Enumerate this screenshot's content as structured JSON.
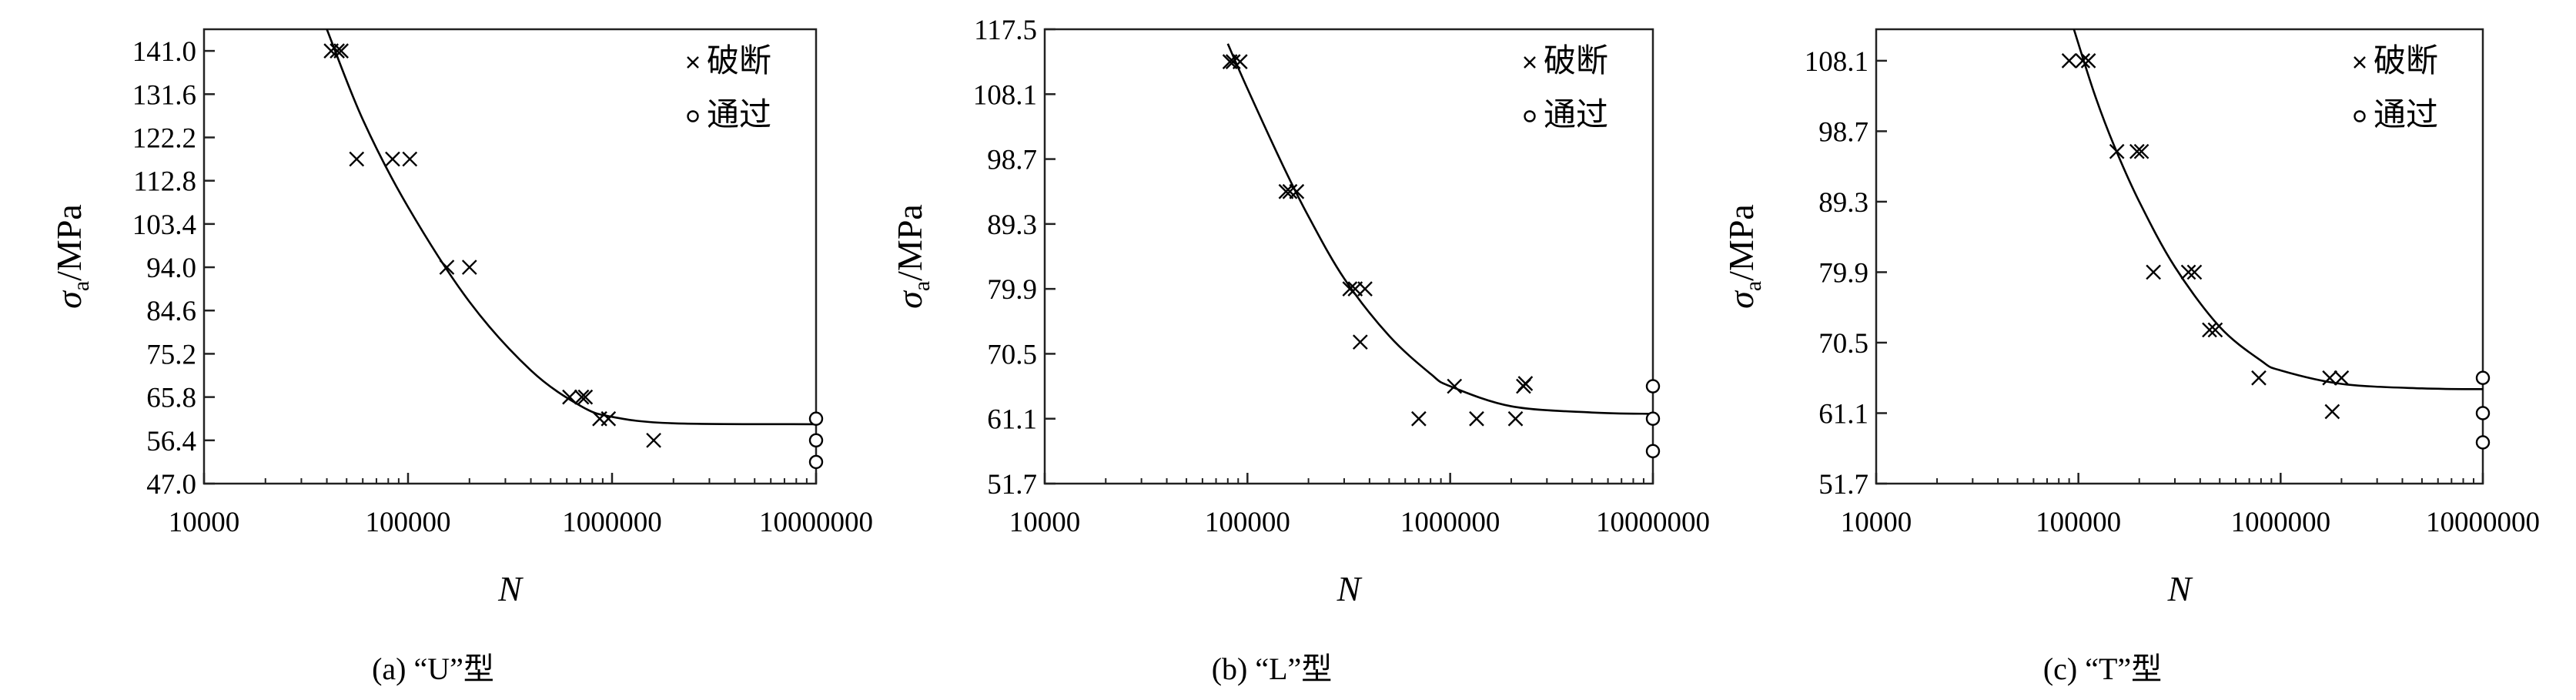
{
  "legend": {
    "broken_label": "破断",
    "passed_label": "通过"
  },
  "chart_data": [
    {
      "type": "scatter",
      "caption": "(a) “U”型",
      "xlabel": "N",
      "ylabel_symbol": "σ",
      "ylabel_subscript": "a",
      "ylabel_unit": "/MPa",
      "x_scale": "log",
      "xlim": [
        10000,
        10000000
      ],
      "ylim": [
        47.0,
        145.7
      ],
      "xticks": [
        10000,
        100000,
        1000000,
        10000000
      ],
      "xtick_labels": [
        "10000",
        "100000",
        "1000000",
        "10000000"
      ],
      "yticks": [
        47.0,
        56.4,
        65.8,
        75.2,
        84.6,
        94.0,
        103.4,
        112.8,
        122.2,
        131.6,
        141.0
      ],
      "ytick_labels": [
        "47.0",
        "56.4",
        "65.8",
        "75.2",
        "84.6",
        "94.0",
        "103.4",
        "112.8",
        "122.2",
        "131.6",
        "141.0"
      ],
      "legend_position": "top-right",
      "series": [
        {
          "name": "破断",
          "marker": "x",
          "points": [
            [
              42000,
              141.0
            ],
            [
              45000,
              141.0
            ],
            [
              47000,
              141.0
            ],
            [
              56000,
              117.5
            ],
            [
              84000,
              117.5
            ],
            [
              102000,
              117.5
            ],
            [
              155000,
              94.0
            ],
            [
              200000,
              94.0
            ],
            [
              620000,
              65.8
            ],
            [
              710000,
              65.8
            ],
            [
              740000,
              65.8
            ],
            [
              870000,
              61.1
            ],
            [
              960000,
              61.1
            ],
            [
              1600000,
              56.4
            ]
          ]
        },
        {
          "name": "通过",
          "marker": "o",
          "points": [
            [
              10000000,
              61.1
            ],
            [
              10000000,
              56.4
            ],
            [
              10000000,
              51.7
            ]
          ]
        }
      ],
      "fit_curve": [
        [
          40000,
          145.7
        ],
        [
          60000,
          126.1
        ],
        [
          100000,
          107.1
        ],
        [
          200000,
          86.5
        ],
        [
          400000,
          71.6
        ],
        [
          700000,
          63.9
        ],
        [
          1000000,
          61.5
        ],
        [
          2000000,
          60.1
        ],
        [
          10000000,
          59.9
        ]
      ]
    },
    {
      "type": "scatter",
      "caption": "(b) “L”型",
      "xlabel": "N",
      "ylabel_symbol": "σ",
      "ylabel_subscript": "a",
      "ylabel_unit": "/MPa",
      "x_scale": "log",
      "xlim": [
        10000,
        10000000
      ],
      "ylim": [
        51.7,
        117.5
      ],
      "xticks": [
        10000,
        100000,
        1000000,
        10000000
      ],
      "xtick_labels": [
        "10000",
        "100000",
        "1000000",
        "10000000"
      ],
      "yticks": [
        51.7,
        61.1,
        70.5,
        79.9,
        89.3,
        98.7,
        108.1,
        117.5
      ],
      "ytick_labels": [
        "51.7",
        "61.1",
        "70.5",
        "79.9",
        "89.3",
        "98.7",
        "108.1",
        "117.5"
      ],
      "legend_position": "top-right",
      "series": [
        {
          "name": "破断",
          "marker": "x",
          "points": [
            [
              82000,
              112.8
            ],
            [
              85000,
              112.8
            ],
            [
              92000,
              112.8
            ],
            [
              155000,
              94.0
            ],
            [
              162000,
              94.0
            ],
            [
              175000,
              94.0
            ],
            [
              320000,
              79.9
            ],
            [
              340000,
              79.9
            ],
            [
              380000,
              79.9
            ],
            [
              360000,
              72.2
            ],
            [
              700000,
              61.1
            ],
            [
              1050000,
              65.8
            ],
            [
              1350000,
              61.1
            ],
            [
              2100000,
              61.1
            ],
            [
              2300000,
              65.8
            ],
            [
              2350000,
              66.2
            ]
          ]
        },
        {
          "name": "通过",
          "marker": "o",
          "points": [
            [
              10000000,
              65.8
            ],
            [
              10000000,
              61.1
            ],
            [
              10000000,
              56.4
            ]
          ]
        }
      ],
      "fit_curve": [
        [
          80000,
          115.4
        ],
        [
          100000,
          108.9
        ],
        [
          150000,
          97.7
        ],
        [
          200000,
          90.4
        ],
        [
          300000,
          81.4
        ],
        [
          500000,
          73.1
        ],
        [
          800000,
          67.6
        ],
        [
          1000000,
          65.8
        ],
        [
          2000000,
          62.9
        ],
        [
          5000000,
          62.0
        ],
        [
          10000000,
          61.8
        ]
      ]
    },
    {
      "type": "scatter",
      "caption": "(c) “T”型",
      "xlabel": "N",
      "ylabel_symbol": "σ",
      "ylabel_subscript": "a",
      "ylabel_unit": "/MPa",
      "x_scale": "log",
      "xlim": [
        10000,
        10000000
      ],
      "ylim": [
        51.7,
        112.3
      ],
      "xticks": [
        10000,
        100000,
        1000000,
        10000000
      ],
      "xtick_labels": [
        "10000",
        "100000",
        "1000000",
        "10000000"
      ],
      "yticks": [
        51.7,
        61.1,
        70.5,
        79.9,
        89.3,
        98.7,
        108.1
      ],
      "ytick_labels": [
        "51.7",
        "61.1",
        "70.5",
        "79.9",
        "89.3",
        "98.7",
        "108.1"
      ],
      "legend_position": "top-right",
      "series": [
        {
          "name": "破断",
          "marker": "x",
          "points": [
            [
              90000,
              108.1
            ],
            [
              105000,
              108.1
            ],
            [
              112000,
              108.1
            ],
            [
              155000,
              96.0
            ],
            [
              195000,
              96.0
            ],
            [
              205000,
              96.0
            ],
            [
              235000,
              79.9
            ],
            [
              350000,
              79.9
            ],
            [
              375000,
              79.9
            ],
            [
              445000,
              72.2
            ],
            [
              475000,
              72.2
            ],
            [
              780000,
              65.8
            ],
            [
              1750000,
              65.8
            ],
            [
              2000000,
              65.8
            ],
            [
              1800000,
              61.3
            ]
          ]
        },
        {
          "name": "通过",
          "marker": "o",
          "points": [
            [
              10000000,
              65.8
            ],
            [
              10000000,
              61.1
            ],
            [
              10000000,
              57.2
            ]
          ]
        }
      ],
      "fit_curve": [
        [
          95000,
          112.3
        ],
        [
          120000,
          103.7
        ],
        [
          150000,
          96.8
        ],
        [
          200000,
          89.3
        ],
        [
          300000,
          80.6
        ],
        [
          500000,
          72.6
        ],
        [
          800000,
          68.1
        ],
        [
          1000000,
          66.8
        ],
        [
          2000000,
          65.0
        ],
        [
          5000000,
          64.4
        ],
        [
          10000000,
          64.3
        ]
      ]
    }
  ]
}
